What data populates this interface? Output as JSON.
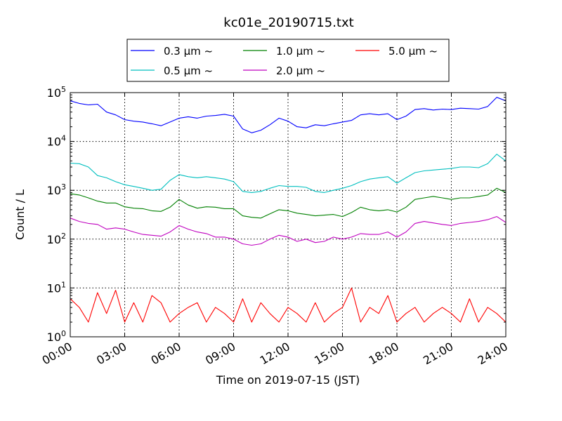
{
  "chart_data": {
    "type": "line",
    "title": "kc01e_20190715.txt",
    "xlabel": "Time on 2019-07-15 (JST)",
    "ylabel": "Count / L",
    "yscale": "log",
    "xlim": [
      0,
      24
    ],
    "ylim": [
      1,
      100000
    ],
    "grid": true,
    "legend_position": "top",
    "x_tick_values": [
      0,
      3,
      6,
      9,
      12,
      15,
      18,
      21,
      24
    ],
    "x_tick_labels": [
      "00:00",
      "03:00",
      "06:00",
      "09:00",
      "12:00",
      "15:00",
      "18:00",
      "21:00",
      "24:00"
    ],
    "y_tick_values": [
      1,
      10,
      100,
      1000,
      10000,
      100000
    ],
    "y_tick_base": "10",
    "y_tick_exponents": [
      "0",
      "1",
      "2",
      "3",
      "4",
      "5"
    ],
    "x": [
      0.0,
      0.5,
      1.0,
      1.5,
      2.0,
      2.5,
      3.0,
      3.5,
      4.0,
      4.5,
      5.0,
      5.5,
      6.0,
      6.5,
      7.0,
      7.5,
      8.0,
      8.5,
      9.0,
      9.5,
      10.0,
      10.5,
      11.0,
      11.5,
      12.0,
      12.5,
      13.0,
      13.5,
      14.0,
      14.5,
      15.0,
      15.5,
      16.0,
      16.5,
      17.0,
      17.5,
      18.0,
      18.5,
      19.0,
      19.5,
      20.0,
      20.5,
      21.0,
      21.5,
      22.0,
      22.5,
      23.0,
      23.5,
      24.0
    ],
    "series": [
      {
        "name": "0.3 μm ~",
        "color": "#0000ff",
        "values": [
          68000,
          60000,
          56000,
          58000,
          40000,
          35000,
          28000,
          26000,
          25000,
          23000,
          21000,
          25000,
          30000,
          32000,
          30000,
          33000,
          34000,
          36000,
          33000,
          18000,
          15000,
          17000,
          22000,
          30000,
          26000,
          20000,
          19000,
          22000,
          21000,
          23000,
          25000,
          27000,
          35000,
          37000,
          35000,
          37000,
          28000,
          33000,
          45000,
          47000,
          44000,
          46000,
          45000,
          48000,
          47000,
          46000,
          52000,
          80000,
          68000
        ]
      },
      {
        "name": "0.5 μm ~",
        "color": "#00bfbf",
        "values": [
          3600,
          3500,
          3000,
          2000,
          1800,
          1500,
          1300,
          1200,
          1100,
          1000,
          1050,
          1600,
          2100,
          1900,
          1800,
          1900,
          1800,
          1700,
          1500,
          950,
          900,
          950,
          1100,
          1250,
          1200,
          1200,
          1150,
          950,
          900,
          1000,
          1100,
          1250,
          1500,
          1700,
          1800,
          1900,
          1400,
          1800,
          2300,
          2500,
          2600,
          2700,
          2800,
          3000,
          3000,
          2900,
          3500,
          5500,
          4000
        ]
      },
      {
        "name": "1.0 μm ~",
        "color": "#008000",
        "values": [
          850,
          800,
          700,
          600,
          550,
          550,
          460,
          430,
          420,
          380,
          370,
          450,
          650,
          500,
          430,
          460,
          450,
          420,
          420,
          300,
          280,
          270,
          330,
          400,
          380,
          340,
          320,
          300,
          310,
          320,
          290,
          350,
          450,
          400,
          380,
          400,
          360,
          450,
          650,
          700,
          750,
          700,
          650,
          700,
          700,
          750,
          800,
          1100,
          900
        ]
      },
      {
        "name": "2.0 μm ~",
        "color": "#bf00bf",
        "values": [
          270,
          230,
          210,
          200,
          160,
          170,
          160,
          140,
          125,
          120,
          115,
          140,
          190,
          160,
          140,
          130,
          110,
          110,
          100,
          80,
          75,
          80,
          100,
          120,
          110,
          90,
          100,
          85,
          90,
          110,
          100,
          110,
          130,
          125,
          125,
          140,
          110,
          140,
          210,
          230,
          215,
          200,
          190,
          210,
          220,
          230,
          250,
          290,
          220
        ]
      },
      {
        "name": "5.0 μm ~",
        "color": "#ff0000",
        "values": [
          6,
          4,
          2,
          8,
          3,
          9,
          2,
          5,
          2,
          7,
          5,
          2,
          3,
          4,
          5,
          2,
          4,
          3,
          2,
          6,
          2,
          5,
          3,
          2,
          4,
          3,
          2,
          5,
          2,
          3,
          4,
          10,
          2,
          4,
          3,
          7,
          2,
          3,
          4,
          2,
          3,
          4,
          3,
          2,
          6,
          2,
          4,
          3,
          2
        ]
      }
    ]
  }
}
